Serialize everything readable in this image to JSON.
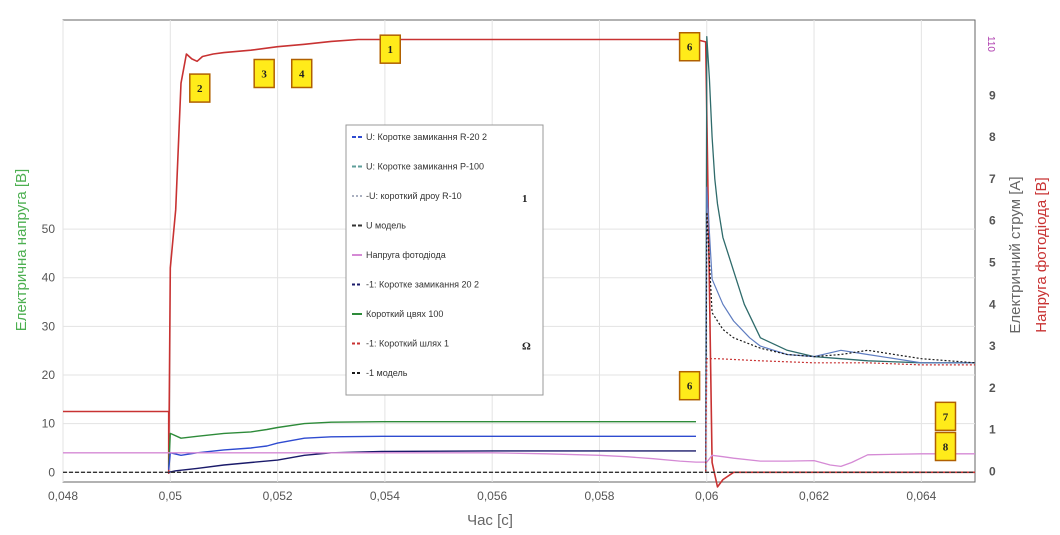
{
  "chart_data": {
    "type": "line",
    "xlabel": "Час [с]",
    "ylabel_left": "Електрична напруга [В]",
    "ylabel_right_inner": "Електричний струм [А]",
    "ylabel_right_outer": "Напруга фотодіода [В]",
    "right_top_tick": "110",
    "xlim": [
      0.048,
      0.065
    ],
    "ylim_left": [
      -2,
      93
    ],
    "ylim_current": [
      -0.25,
      10.8
    ],
    "x_ticks": [
      0.048,
      0.05,
      0.052,
      0.054,
      0.056,
      0.058,
      0.06,
      0.062,
      0.064
    ],
    "x_tick_labels": [
      "0,048",
      "0,05",
      "0,052",
      "0,054",
      "0,056",
      "0,058",
      "0,06",
      "0,062",
      "0,064"
    ],
    "y_left_ticks": [
      0,
      10,
      20,
      30,
      40,
      50
    ],
    "y_left_tick_labels": [
      "0",
      "10",
      "20",
      "30",
      "40",
      "50"
    ],
    "y_current_ticks": [
      0,
      1,
      2,
      3,
      4,
      5,
      6,
      7,
      8,
      9
    ],
    "y_current_tick_labels": [
      "0",
      "1",
      "2",
      "3",
      "4",
      "5",
      "6",
      "7",
      "8",
      "9"
    ],
    "grid": true,
    "legend_position": "center",
    "legend": [
      {
        "label": "U: Коротке замикання R-20 2",
        "color": "#2f4bd0",
        "dash": "4,2"
      },
      {
        "label": "U: Коротке замикання P-100",
        "color": "#5e9e9a",
        "dash": "4,2"
      },
      {
        "label": "-U: короткий дроу R-10",
        "color": "#aab0c0",
        "dash": "2,2"
      },
      {
        "label": "U модель",
        "color": "#333333",
        "dash": "4,2"
      },
      {
        "label": "Напруга фотодіода",
        "color": "#d58ad5",
        "dash": ""
      },
      {
        "label": "-1: Коротке замикання 20 2",
        "color": "#1a1a6a",
        "dash": "3,2"
      },
      {
        "label": "Короткий цвях 100",
        "color": "#2e8b3a",
        "dash": ""
      },
      {
        "label": "-1: Короткий шлях 1",
        "color": "#c83232",
        "dash": "3,2"
      },
      {
        "label": "-1 модель",
        "color": "#1a1a1a",
        "dash": "3,2"
      }
    ],
    "legend_suffixes": [
      "",
      "",
      "1",
      "",
      "",
      "",
      "",
      "Ω",
      ""
    ],
    "series": [
      {
        "label": "-1: Короткий шлях 1",
        "axis": "left",
        "color": "#c83232",
        "width": 1.6,
        "x": [
          0.048,
          0.04997,
          0.04997,
          0.05,
          0.0501,
          0.0502,
          0.0503,
          0.0504,
          0.0505,
          0.0506,
          0.0508,
          0.051,
          0.0515,
          0.052,
          0.0525,
          0.053,
          0.0535,
          0.054,
          0.056,
          0.058,
          0.0598,
          0.05998,
          0.0601,
          0.0602,
          0.0603,
          0.0605,
          0.0608,
          0.061,
          0.0615,
          0.062,
          0.063,
          0.065
        ],
        "y": [
          12.5,
          12.5,
          -0.2,
          42,
          54,
          80,
          86,
          85,
          84.5,
          85.5,
          86,
          86.3,
          86.8,
          87.5,
          88,
          88.6,
          89,
          89,
          89,
          89,
          89,
          88.5,
          2,
          -3,
          -1.5,
          0,
          0,
          0,
          0,
          0,
          0,
          0
        ]
      },
      {
        "label": "Короткий цвях 100",
        "axis": "left",
        "color": "#2e8b3a",
        "width": 1.4,
        "x": [
          0.04997,
          0.05,
          0.0502,
          0.0505,
          0.051,
          0.0515,
          0.0518,
          0.052,
          0.0525,
          0.053,
          0.054,
          0.056,
          0.058,
          0.0598
        ],
        "y": [
          1,
          8,
          7,
          7.4,
          8,
          8.3,
          8.8,
          9.2,
          10,
          10.3,
          10.4,
          10.4,
          10.4,
          10.4
        ]
      },
      {
        "label": "U: Коротке замикання R-20 2",
        "axis": "left",
        "color": "#2f4bd0",
        "width": 1.4,
        "x": [
          0.04997,
          0.05,
          0.0502,
          0.0505,
          0.051,
          0.0515,
          0.0518,
          0.052,
          0.0525,
          0.053,
          0.054,
          0.056,
          0.058,
          0.0598
        ],
        "y": [
          0.5,
          4,
          3.5,
          4,
          4.6,
          5,
          5.4,
          6,
          7,
          7.3,
          7.4,
          7.4,
          7.4,
          7.4
        ]
      },
      {
        "label": "-1: Коротке замикання 20 2",
        "axis": "left",
        "color": "#1a1a6a",
        "width": 1.4,
        "x": [
          0.04997,
          0.0501,
          0.0505,
          0.051,
          0.0515,
          0.052,
          0.0525,
          0.053,
          0.054,
          0.056,
          0.058,
          0.0598
        ],
        "y": [
          0,
          0.3,
          0.8,
          1.5,
          2,
          2.5,
          3.5,
          4,
          4.3,
          4.4,
          4.4,
          4.4
        ]
      },
      {
        "label": "Напруга фотодіода",
        "axis": "left",
        "color": "#d58ad5",
        "width": 1.3,
        "x": [
          0.048,
          0.05,
          0.052,
          0.054,
          0.056,
          0.057,
          0.058,
          0.0585,
          0.059,
          0.0595,
          0.0598,
          0.06,
          0.0601,
          0.0603,
          0.0605,
          0.061,
          0.0615,
          0.062,
          0.0623,
          0.0625,
          0.0627,
          0.063,
          0.064,
          0.065
        ],
        "y": [
          4,
          4,
          4,
          4,
          4,
          3.8,
          3.5,
          3.2,
          2.8,
          2.3,
          2.1,
          2.1,
          3.5,
          3.2,
          2.9,
          2.3,
          2.3,
          2.4,
          1.5,
          1.2,
          2,
          3.6,
          3.8,
          3.8
        ]
      },
      {
        "label": "U модель",
        "axis": "left",
        "color": "#333333",
        "width": 1.3,
        "dash": "4,2",
        "x": [
          0.048,
          0.065
        ],
        "y": [
          0,
          0
        ]
      },
      {
        "label": "U: Коротке замикання P-100",
        "axis": "current",
        "color": "#2f6b6b",
        "width": 1.3,
        "x": [
          0.05998,
          0.06,
          0.06005,
          0.0601,
          0.06015,
          0.0602,
          0.0603,
          0.0605,
          0.0607,
          0.061,
          0.0615,
          0.062,
          0.0625,
          0.063,
          0.064,
          0.065
        ],
        "y": [
          0,
          10.4,
          9.4,
          8,
          7,
          6.4,
          5.6,
          4.8,
          4,
          3.2,
          2.9,
          2.75,
          2.7,
          2.65,
          2.6,
          2.6
        ]
      },
      {
        "label": "U: Коротке замикання R-20 2",
        "axis": "current",
        "color": "#5e7cc0",
        "width": 1.2,
        "x": [
          0.05998,
          0.06,
          0.0601,
          0.0603,
          0.0605,
          0.0608,
          0.061,
          0.0615,
          0.062,
          0.0625,
          0.063,
          0.064,
          0.065
        ],
        "y": [
          0,
          6.8,
          4.6,
          4,
          3.6,
          3.2,
          3,
          2.8,
          2.75,
          2.9,
          2.8,
          2.6,
          2.6
        ]
      },
      {
        "label": "-1 модель",
        "axis": "current",
        "color": "#1a1a1a",
        "width": 1.2,
        "dash": "2,2",
        "x": [
          0.05998,
          0.06,
          0.0601,
          0.0603,
          0.0605,
          0.061,
          0.0615,
          0.062,
          0.0625,
          0.063,
          0.064,
          0.065
        ],
        "y": [
          0,
          6.2,
          3.8,
          3.4,
          3.2,
          2.95,
          2.8,
          2.75,
          2.8,
          2.9,
          2.7,
          2.6
        ]
      },
      {
        "label": "-1: Короткий шлях 1",
        "axis": "current",
        "color": "#c83232",
        "width": 1.2,
        "dash": "2,2",
        "x": [
          0.05998,
          0.06,
          0.0602,
          0.061,
          0.062,
          0.063,
          0.064,
          0.065
        ],
        "y": [
          0,
          2.7,
          2.7,
          2.65,
          2.6,
          2.6,
          2.55,
          2.55
        ]
      }
    ],
    "annotations": [
      {
        "text": "1",
        "x": 0.0541,
        "y": 87
      },
      {
        "text": "2",
        "x": 0.05055,
        "y": 79
      },
      {
        "text": "3",
        "x": 0.05175,
        "y": 82
      },
      {
        "text": "4",
        "x": 0.05245,
        "y": 82
      },
      {
        "text": "6",
        "x": 0.05968,
        "y": 87.5
      },
      {
        "text": "6",
        "x": 0.05968,
        "y": 17.8
      },
      {
        "text": "7",
        "x": 0.06445,
        "y": 11.5
      },
      {
        "text": "8",
        "x": 0.06445,
        "y": 5.3
      }
    ]
  }
}
